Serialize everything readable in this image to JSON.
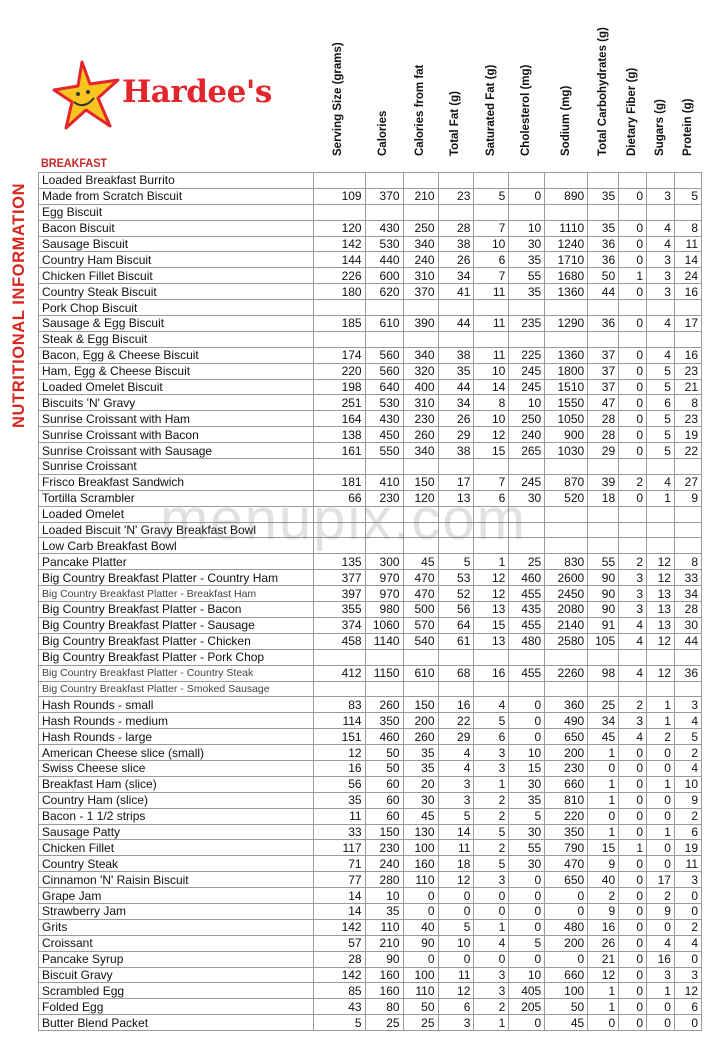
{
  "brand": {
    "name": "Hardee's",
    "accent": "#e3262e",
    "star_color": "#f7c51e"
  },
  "side_title": "NUTRITIONAL INFORMATION",
  "section": "BREAKFAST",
  "watermark": "menupix.com",
  "columns": [
    "Serving Size (grams)",
    "Calories",
    "Calories from fat",
    "Total Fat (g)",
    "Saturated Fat (g)",
    "Cholesterol (mg)",
    "Sodium (mg)",
    "Total Carbohydrates (g)",
    "Dietary Fiber (g)",
    "Sugars (g)",
    "Protein (g)"
  ],
  "rows": [
    [
      "Loaded Breakfast Burrito"
    ],
    [
      "Made from Scratch Biscuit",
      "109",
      "370",
      "210",
      "23",
      "5",
      "0",
      "890",
      "35",
      "0",
      "3",
      "5"
    ],
    [
      "Egg Biscuit"
    ],
    [
      "Bacon Biscuit",
      "120",
      "430",
      "250",
      "28",
      "7",
      "10",
      "1110",
      "35",
      "0",
      "4",
      "8"
    ],
    [
      "Sausage Biscuit",
      "142",
      "530",
      "340",
      "38",
      "10",
      "30",
      "1240",
      "36",
      "0",
      "4",
      "11"
    ],
    [
      "Country Ham Biscuit",
      "144",
      "440",
      "240",
      "26",
      "6",
      "35",
      "1710",
      "36",
      "0",
      "3",
      "14"
    ],
    [
      "Chicken Fillet Biscuit",
      "226",
      "600",
      "310",
      "34",
      "7",
      "55",
      "1680",
      "50",
      "1",
      "3",
      "24"
    ],
    [
      "Country Steak Biscuit",
      "180",
      "620",
      "370",
      "41",
      "11",
      "35",
      "1360",
      "44",
      "0",
      "3",
      "16"
    ],
    [
      "Pork Chop Biscuit"
    ],
    [
      "Sausage & Egg Biscuit",
      "185",
      "610",
      "390",
      "44",
      "11",
      "235",
      "1290",
      "36",
      "0",
      "4",
      "17"
    ],
    [
      "Steak & Egg Biscuit"
    ],
    [
      "Bacon, Egg & Cheese Biscuit",
      "174",
      "560",
      "340",
      "38",
      "11",
      "225",
      "1360",
      "37",
      "0",
      "4",
      "16"
    ],
    [
      "Ham, Egg & Cheese Biscuit",
      "220",
      "560",
      "320",
      "35",
      "10",
      "245",
      "1800",
      "37",
      "0",
      "5",
      "23"
    ],
    [
      "Loaded Omelet Biscuit",
      "198",
      "640",
      "400",
      "44",
      "14",
      "245",
      "1510",
      "37",
      "0",
      "5",
      "21"
    ],
    [
      "Biscuits 'N' Gravy",
      "251",
      "530",
      "310",
      "34",
      "8",
      "10",
      "1550",
      "47",
      "0",
      "6",
      "8"
    ],
    [
      "Sunrise Croissant with Ham",
      "164",
      "430",
      "230",
      "26",
      "10",
      "250",
      "1050",
      "28",
      "0",
      "5",
      "23"
    ],
    [
      "Sunrise Croissant with Bacon",
      "138",
      "450",
      "260",
      "29",
      "12",
      "240",
      "900",
      "28",
      "0",
      "5",
      "19"
    ],
    [
      "Sunrise Croissant with Sausage",
      "161",
      "550",
      "340",
      "38",
      "15",
      "265",
      "1030",
      "29",
      "0",
      "5",
      "22"
    ],
    [
      "Sunrise Croissant"
    ],
    [
      "Frisco Breakfast Sandwich",
      "181",
      "410",
      "150",
      "17",
      "7",
      "245",
      "870",
      "39",
      "2",
      "4",
      "27"
    ],
    [
      "Tortilla Scrambler",
      "66",
      "230",
      "120",
      "13",
      "6",
      "30",
      "520",
      "18",
      "0",
      "1",
      "9"
    ],
    [
      "Loaded Omelet"
    ],
    [
      "Loaded Biscuit 'N' Gravy Breakfast Bowl"
    ],
    [
      "Low Carb Breakfast Bowl"
    ],
    [
      "Pancake Platter",
      "135",
      "300",
      "45",
      "5",
      "1",
      "25",
      "830",
      "55",
      "2",
      "12",
      "8"
    ],
    [
      "Big Country Breakfast Platter - Country Ham",
      "377",
      "970",
      "470",
      "53",
      "12",
      "460",
      "2600",
      "90",
      "3",
      "12",
      "33"
    ],
    [
      "Big Country Breakfast Platter - Breakfast Ham",
      "397",
      "970",
      "470",
      "52",
      "12",
      "455",
      "2450",
      "90",
      "3",
      "13",
      "34"
    ],
    [
      "Big Country Breakfast Platter - Bacon",
      "355",
      "980",
      "500",
      "56",
      "13",
      "435",
      "2080",
      "90",
      "3",
      "13",
      "28"
    ],
    [
      "Big Country Breakfast Platter - Sausage",
      "374",
      "1060",
      "570",
      "64",
      "15",
      "455",
      "2140",
      "91",
      "4",
      "13",
      "30"
    ],
    [
      "Big Country Breakfast Platter - Chicken",
      "458",
      "1140",
      "540",
      "61",
      "13",
      "480",
      "2580",
      "105",
      "4",
      "12",
      "44"
    ],
    [
      "Big Country Breakfast Platter - Pork Chop"
    ],
    [
      "Big Country Breakfast Platter - Country Steak",
      "412",
      "1150",
      "610",
      "68",
      "16",
      "455",
      "2260",
      "98",
      "4",
      "12",
      "36"
    ],
    [
      "Big Country Breakfast Platter - Smoked Sausage"
    ],
    [
      "Hash Rounds - small",
      "83",
      "260",
      "150",
      "16",
      "4",
      "0",
      "360",
      "25",
      "2",
      "1",
      "3"
    ],
    [
      "Hash Rounds - medium",
      "114",
      "350",
      "200",
      "22",
      "5",
      "0",
      "490",
      "34",
      "3",
      "1",
      "4"
    ],
    [
      "Hash Rounds - large",
      "151",
      "460",
      "260",
      "29",
      "6",
      "0",
      "650",
      "45",
      "4",
      "2",
      "5"
    ],
    [
      "American Cheese slice (small)",
      "12",
      "50",
      "35",
      "4",
      "3",
      "10",
      "200",
      "1",
      "0",
      "0",
      "2"
    ],
    [
      "Swiss Cheese slice",
      "16",
      "50",
      "35",
      "4",
      "3",
      "15",
      "230",
      "0",
      "0",
      "0",
      "4"
    ],
    [
      "Breakfast Ham (slice)",
      "56",
      "60",
      "20",
      "3",
      "1",
      "30",
      "660",
      "1",
      "0",
      "1",
      "10"
    ],
    [
      "Country Ham (slice)",
      "35",
      "60",
      "30",
      "3",
      "2",
      "35",
      "810",
      "1",
      "0",
      "0",
      "9"
    ],
    [
      "Bacon - 1 1/2 strips",
      "11",
      "60",
      "45",
      "5",
      "2",
      "5",
      "220",
      "0",
      "0",
      "0",
      "2"
    ],
    [
      "Sausage Patty",
      "33",
      "150",
      "130",
      "14",
      "5",
      "30",
      "350",
      "1",
      "0",
      "1",
      "6"
    ],
    [
      "Chicken Fillet",
      "117",
      "230",
      "100",
      "11",
      "2",
      "55",
      "790",
      "15",
      "1",
      "0",
      "19"
    ],
    [
      "Country Steak",
      "71",
      "240",
      "160",
      "18",
      "5",
      "30",
      "470",
      "9",
      "0",
      "0",
      "11"
    ],
    [
      "Cinnamon 'N' Raisin Biscuit",
      "77",
      "280",
      "110",
      "12",
      "3",
      "0",
      "650",
      "40",
      "0",
      "17",
      "3"
    ],
    [
      "Grape Jam",
      "14",
      "10",
      "0",
      "0",
      "0",
      "0",
      "0",
      "2",
      "0",
      "2",
      "0"
    ],
    [
      "Strawberry Jam",
      "14",
      "35",
      "0",
      "0",
      "0",
      "0",
      "0",
      "9",
      "0",
      "9",
      "0"
    ],
    [
      "Grits",
      "142",
      "110",
      "40",
      "5",
      "1",
      "0",
      "480",
      "16",
      "0",
      "0",
      "2"
    ],
    [
      "Croissant",
      "57",
      "210",
      "90",
      "10",
      "4",
      "5",
      "200",
      "26",
      "0",
      "4",
      "4"
    ],
    [
      "Pancake Syrup",
      "28",
      "90",
      "0",
      "0",
      "0",
      "0",
      "0",
      "21",
      "0",
      "16",
      "0"
    ],
    [
      "Biscuit Gravy",
      "142",
      "160",
      "100",
      "11",
      "3",
      "10",
      "660",
      "12",
      "0",
      "3",
      "3"
    ],
    [
      "Scrambled Egg",
      "85",
      "160",
      "110",
      "12",
      "3",
      "405",
      "100",
      "1",
      "0",
      "1",
      "12"
    ],
    [
      "Folded Egg",
      "43",
      "80",
      "50",
      "6",
      "2",
      "205",
      "50",
      "1",
      "0",
      "0",
      "6"
    ],
    [
      "Butter Blend Packet",
      "5",
      "25",
      "25",
      "3",
      "1",
      "0",
      "45",
      "0",
      "0",
      "0",
      "0"
    ]
  ]
}
